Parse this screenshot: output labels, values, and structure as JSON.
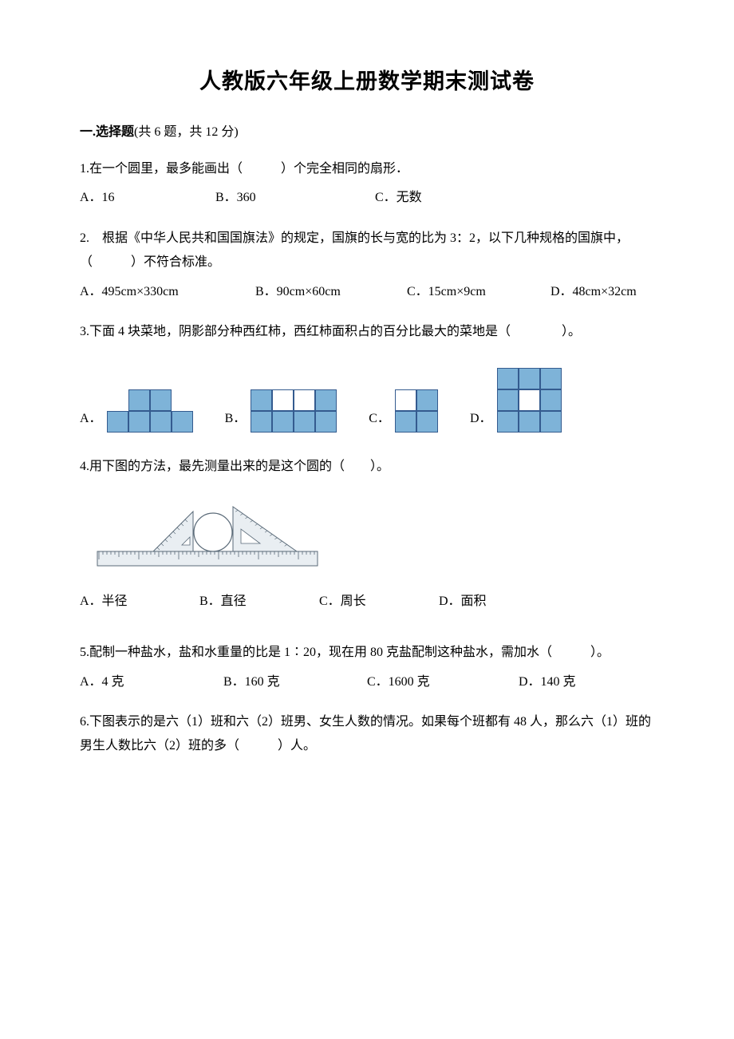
{
  "title": "人教版六年级上册数学期末测试卷",
  "section1": {
    "label": "一.选择题",
    "meta": "(共 6 题，共 12 分)"
  },
  "q1": {
    "text": "1.在一个圆里，最多能画出（　　　）个完全相同的扇形．",
    "a": "A．16",
    "b": "B．360",
    "c": "C．无数"
  },
  "q2": {
    "text": "2.　根据《中华人民共和国国旗法》的规定，国旗的长与宽的比为 3：2，以下几种规格的国旗中，（　　　）不符合标准。",
    "a": "A．495cm×330cm",
    "b": "B．90cm×60cm",
    "c": "C．15cm×9cm",
    "d": "D．48cm×32cm"
  },
  "q3": {
    "text": "3.下面 4 块菜地，阴影部分种西红柿，西红柿面积占的百分比最大的菜地是（　　　　）。",
    "la": "A．",
    "lb": "B．",
    "lc": "C．",
    "ld": "D．",
    "grid_colors": {
      "filled": "#7eb3d8",
      "empty": "#ffffff",
      "border": "#345b8f"
    },
    "shapes": {
      "A": {
        "rows": 2,
        "cols": 4,
        "cells": [
          "n",
          "f",
          "f",
          "n",
          "f",
          "f",
          "f",
          "f"
        ]
      },
      "B": {
        "rows": 2,
        "cols": 4,
        "cells": [
          "f",
          "e",
          "e",
          "f",
          "f",
          "f",
          "f",
          "f"
        ]
      },
      "C": {
        "rows": 2,
        "cols": 2,
        "cells": [
          "e",
          "f",
          "f",
          "f"
        ]
      },
      "D": {
        "rows": 3,
        "cols": 3,
        "cells": [
          "f",
          "f",
          "f",
          "f",
          "e",
          "f",
          "f",
          "f",
          "f"
        ]
      }
    }
  },
  "q4": {
    "text": "4.用下图的方法，最先测量出来的是这个圆的（　　）。",
    "a": "A．半径",
    "b": "B．直径",
    "c": "C．周长",
    "d": "D．面积",
    "fig_colors": {
      "stroke": "#5a6a78",
      "fill": "#e9eef2"
    }
  },
  "q5": {
    "text": "5.配制一种盐水，盐和水重量的比是 1∶20，现在用 80 克盐配制这种盐水，需加水（　　　）。",
    "a": "A．4 克",
    "b": "B．160 克",
    "c": "C．1600 克",
    "d": "D．140 克"
  },
  "q6": {
    "text": "6.下图表示的是六（1）班和六（2）班男、女生人数的情况。如果每个班都有 48 人，那么六（1）班的男生人数比六（2）班的多（　　　）人。"
  }
}
